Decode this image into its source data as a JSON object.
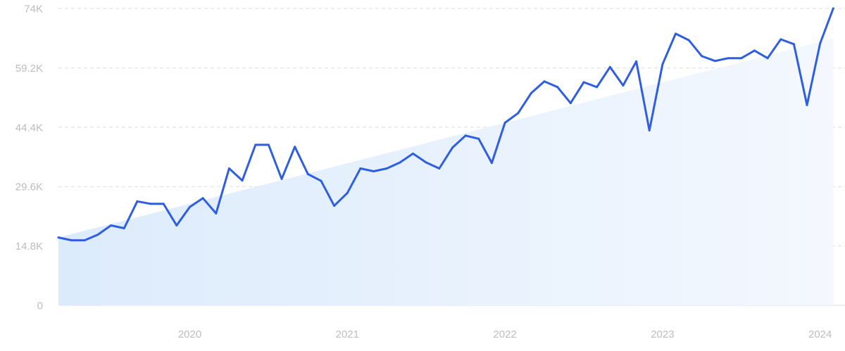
{
  "chart_data": {
    "type": "line",
    "title": "",
    "xlabel": "",
    "ylabel": "",
    "ylim": [
      0,
      74000
    ],
    "y_ticks": [
      {
        "value": 0,
        "label": "0"
      },
      {
        "value": 14800,
        "label": "14.8K"
      },
      {
        "value": 29600,
        "label": "29.6K"
      },
      {
        "value": 44400,
        "label": "44.4K"
      },
      {
        "value": 59200,
        "label": "59.2K"
      },
      {
        "value": 74000,
        "label": "74K"
      }
    ],
    "x_ticks": [
      {
        "value": "2020-01",
        "label": "2020"
      },
      {
        "value": "2021-01",
        "label": "2021"
      },
      {
        "value": "2022-01",
        "label": "2022"
      },
      {
        "value": "2023-01",
        "label": "2023"
      },
      {
        "value": "2024-01",
        "label": "2024"
      }
    ],
    "grid": true,
    "legend": "none",
    "series": [
      {
        "color": "#2f5fe0",
        "x": [
          "2019-03",
          "2019-04",
          "2019-05",
          "2019-06",
          "2019-07",
          "2019-08",
          "2019-09",
          "2019-10",
          "2019-11",
          "2019-12",
          "2020-01",
          "2020-02",
          "2020-03",
          "2020-04",
          "2020-05",
          "2020-06",
          "2020-07",
          "2020-08",
          "2020-09",
          "2020-10",
          "2020-11",
          "2020-12",
          "2021-01",
          "2021-02",
          "2021-03",
          "2021-04",
          "2021-05",
          "2021-06",
          "2021-07",
          "2021-08",
          "2021-09",
          "2021-10",
          "2021-11",
          "2021-12",
          "2022-01",
          "2022-02",
          "2022-03",
          "2022-04",
          "2022-05",
          "2022-06",
          "2022-07",
          "2022-08",
          "2022-09",
          "2022-10",
          "2022-11",
          "2022-12",
          "2023-01",
          "2023-02",
          "2023-03",
          "2023-04",
          "2023-05",
          "2023-06",
          "2023-07",
          "2023-08",
          "2023-09",
          "2023-10",
          "2023-11",
          "2023-12",
          "2024-01",
          "2024-02"
        ],
        "values": [
          16900,
          16200,
          16200,
          17600,
          19900,
          19200,
          25900,
          25300,
          25300,
          19900,
          24500,
          26700,
          22900,
          34100,
          31100,
          40000,
          40000,
          31500,
          39500,
          32700,
          31000,
          24800,
          28000,
          34100,
          33400,
          34100,
          35600,
          37800,
          35600,
          34100,
          39300,
          42300,
          41500,
          35500,
          45500,
          47900,
          52900,
          55800,
          54400,
          50400,
          55600,
          54400,
          59400,
          54800,
          60800,
          43600,
          60100,
          67700,
          66100,
          62100,
          60900,
          61600,
          61600,
          63500,
          61600,
          66300,
          65100,
          49900,
          65300,
          74000
        ]
      }
    ],
    "trend": {
      "color": "#e3eefc",
      "x": [
        "2019-03",
        "2024-02"
      ],
      "values": [
        16900,
        66500
      ]
    }
  }
}
